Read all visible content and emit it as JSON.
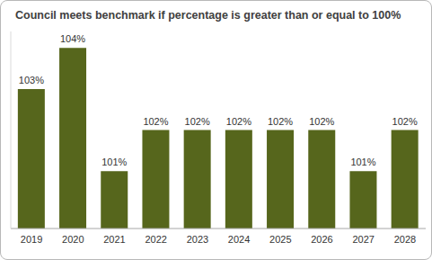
{
  "chart_data": {
    "type": "bar",
    "title": "Council meets benchmark if percentage is greater than or equal to 100%",
    "categories": [
      "2019",
      "2020",
      "2021",
      "2022",
      "2023",
      "2024",
      "2025",
      "2026",
      "2027",
      "2028"
    ],
    "values": [
      103,
      104,
      101,
      102,
      102,
      102,
      102,
      102,
      101,
      102
    ],
    "value_labels": [
      "103%",
      "104%",
      "101%",
      "102%",
      "102%",
      "102%",
      "102%",
      "102%",
      "101%",
      "102%"
    ],
    "color": "#56661c",
    "ylim": [
      99.6,
      104.4
    ],
    "data_labels": true,
    "tick_labels": "x",
    "grid": false
  }
}
